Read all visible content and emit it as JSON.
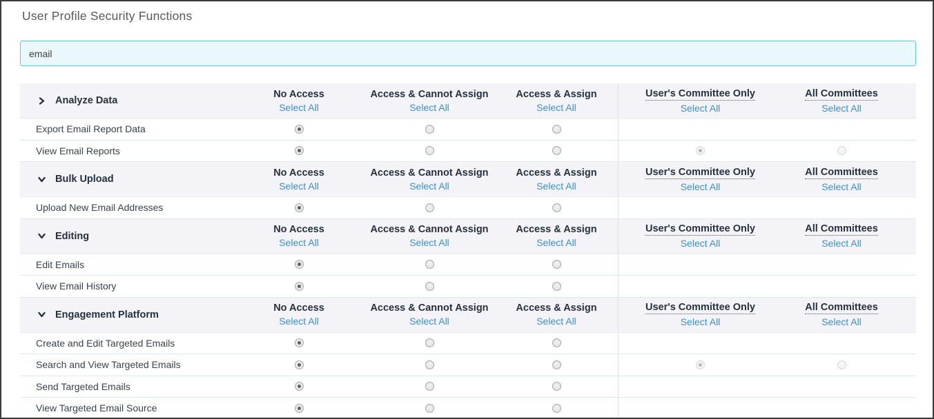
{
  "window": {
    "title": "User Profile Security Functions"
  },
  "search": {
    "value": "email",
    "placeholder": ""
  },
  "table": {
    "select_all_label": "Select All",
    "access_columns": [
      "No Access",
      "Access & Cannot Assign",
      "Access & Assign"
    ],
    "committee_columns": [
      "User's Committee Only",
      "All Committees"
    ],
    "groups": [
      {
        "label": "Analyze Data",
        "expanded": false,
        "rows": [
          {
            "label": "Export Email Report Data",
            "selected_access": "No Access",
            "committee_visible": false,
            "selected_committee": null
          },
          {
            "label": "View Email Reports",
            "selected_access": "No Access",
            "committee_visible": true,
            "selected_committee": "User's Committee Only"
          }
        ]
      },
      {
        "label": "Bulk Upload",
        "expanded": true,
        "rows": [
          {
            "label": "Upload New Email Addresses",
            "selected_access": "No Access",
            "committee_visible": false,
            "selected_committee": null
          }
        ]
      },
      {
        "label": "Editing",
        "expanded": true,
        "rows": [
          {
            "label": "Edit Emails",
            "selected_access": "No Access",
            "committee_visible": false,
            "selected_committee": null
          },
          {
            "label": "View Email History",
            "selected_access": "No Access",
            "committee_visible": false,
            "selected_committee": null
          }
        ]
      },
      {
        "label": "Engagement Platform",
        "expanded": true,
        "rows": [
          {
            "label": "Create and Edit Targeted Emails",
            "selected_access": "No Access",
            "committee_visible": false,
            "selected_committee": null
          },
          {
            "label": "Search and View Targeted Emails",
            "selected_access": "No Access",
            "committee_visible": true,
            "selected_committee": "User's Committee Only"
          },
          {
            "label": "Send Targeted Emails",
            "selected_access": "No Access",
            "committee_visible": false,
            "selected_committee": null
          },
          {
            "label": "View Targeted Email Source",
            "selected_access": "No Access",
            "committee_visible": false,
            "selected_committee": null
          }
        ]
      }
    ]
  },
  "colors": {
    "accent_link": "#3D8EC9",
    "search_border": "#55C2E7",
    "search_bg": "#EAF7FC",
    "group_header_bg": "#F4F4F8",
    "heading_text": "#25313E",
    "row_border": "#DFE7F1",
    "window_border": "#3A3A3A"
  }
}
